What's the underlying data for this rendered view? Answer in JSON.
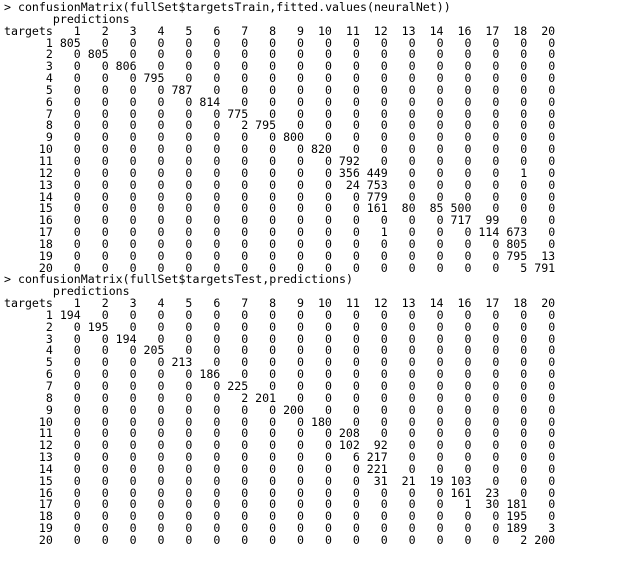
{
  "blocks": [
    {
      "command": "> confusionMatrix(fullSet$targetsTrain,fitted.values(neuralNet))",
      "col_header": "predictions",
      "row_header": "targets",
      "columns": [
        "1",
        "2",
        "3",
        "4",
        "5",
        "6",
        "7",
        "8",
        "9",
        "10",
        "11",
        "12",
        "13",
        "14",
        "16",
        "17",
        "18",
        "20"
      ],
      "rows": [
        {
          "target": "1",
          "values": [
            805,
            0,
            0,
            0,
            0,
            0,
            0,
            0,
            0,
            0,
            0,
            0,
            0,
            0,
            0,
            0,
            0,
            0
          ]
        },
        {
          "target": "2",
          "values": [
            0,
            805,
            0,
            0,
            0,
            0,
            0,
            0,
            0,
            0,
            0,
            0,
            0,
            0,
            0,
            0,
            0,
            0
          ]
        },
        {
          "target": "3",
          "values": [
            0,
            0,
            806,
            0,
            0,
            0,
            0,
            0,
            0,
            0,
            0,
            0,
            0,
            0,
            0,
            0,
            0,
            0
          ]
        },
        {
          "target": "4",
          "values": [
            0,
            0,
            0,
            795,
            0,
            0,
            0,
            0,
            0,
            0,
            0,
            0,
            0,
            0,
            0,
            0,
            0,
            0
          ]
        },
        {
          "target": "5",
          "values": [
            0,
            0,
            0,
            0,
            787,
            0,
            0,
            0,
            0,
            0,
            0,
            0,
            0,
            0,
            0,
            0,
            0,
            0
          ]
        },
        {
          "target": "6",
          "values": [
            0,
            0,
            0,
            0,
            0,
            814,
            0,
            0,
            0,
            0,
            0,
            0,
            0,
            0,
            0,
            0,
            0,
            0
          ]
        },
        {
          "target": "7",
          "values": [
            0,
            0,
            0,
            0,
            0,
            0,
            775,
            0,
            0,
            0,
            0,
            0,
            0,
            0,
            0,
            0,
            0,
            0
          ]
        },
        {
          "target": "8",
          "values": [
            0,
            0,
            0,
            0,
            0,
            0,
            2,
            795,
            0,
            0,
            0,
            0,
            0,
            0,
            0,
            0,
            0,
            0
          ]
        },
        {
          "target": "9",
          "values": [
            0,
            0,
            0,
            0,
            0,
            0,
            0,
            0,
            800,
            0,
            0,
            0,
            0,
            0,
            0,
            0,
            0,
            0
          ]
        },
        {
          "target": "10",
          "values": [
            0,
            0,
            0,
            0,
            0,
            0,
            0,
            0,
            0,
            820,
            0,
            0,
            0,
            0,
            0,
            0,
            0,
            0
          ]
        },
        {
          "target": "11",
          "values": [
            0,
            0,
            0,
            0,
            0,
            0,
            0,
            0,
            0,
            0,
            792,
            0,
            0,
            0,
            0,
            0,
            0,
            0
          ]
        },
        {
          "target": "12",
          "values": [
            0,
            0,
            0,
            0,
            0,
            0,
            0,
            0,
            0,
            0,
            356,
            449,
            0,
            0,
            0,
            0,
            1,
            0
          ]
        },
        {
          "target": "13",
          "values": [
            0,
            0,
            0,
            0,
            0,
            0,
            0,
            0,
            0,
            0,
            24,
            753,
            0,
            0,
            0,
            0,
            0,
            0
          ]
        },
        {
          "target": "14",
          "values": [
            0,
            0,
            0,
            0,
            0,
            0,
            0,
            0,
            0,
            0,
            0,
            779,
            0,
            0,
            0,
            0,
            0,
            0
          ]
        },
        {
          "target": "15",
          "values": [
            0,
            0,
            0,
            0,
            0,
            0,
            0,
            0,
            0,
            0,
            0,
            161,
            80,
            85,
            500,
            0,
            0,
            0
          ]
        },
        {
          "target": "16",
          "values": [
            0,
            0,
            0,
            0,
            0,
            0,
            0,
            0,
            0,
            0,
            0,
            0,
            0,
            0,
            717,
            99,
            0,
            0
          ]
        },
        {
          "target": "17",
          "values": [
            0,
            0,
            0,
            0,
            0,
            0,
            0,
            0,
            0,
            0,
            0,
            1,
            0,
            0,
            0,
            114,
            673,
            0
          ]
        },
        {
          "target": "18",
          "values": [
            0,
            0,
            0,
            0,
            0,
            0,
            0,
            0,
            0,
            0,
            0,
            0,
            0,
            0,
            0,
            0,
            805,
            0
          ]
        },
        {
          "target": "19",
          "values": [
            0,
            0,
            0,
            0,
            0,
            0,
            0,
            0,
            0,
            0,
            0,
            0,
            0,
            0,
            0,
            0,
            795,
            13
          ]
        },
        {
          "target": "20",
          "values": [
            0,
            0,
            0,
            0,
            0,
            0,
            0,
            0,
            0,
            0,
            0,
            0,
            0,
            0,
            0,
            0,
            5,
            791
          ]
        }
      ]
    },
    {
      "command": "> confusionMatrix(fullSet$targetsTest,predictions)",
      "col_header": "predictions",
      "row_header": "targets",
      "columns": [
        "1",
        "2",
        "3",
        "4",
        "5",
        "6",
        "7",
        "8",
        "9",
        "10",
        "11",
        "12",
        "13",
        "14",
        "16",
        "17",
        "18",
        "20"
      ],
      "rows": [
        {
          "target": "1",
          "values": [
            194,
            0,
            0,
            0,
            0,
            0,
            0,
            0,
            0,
            0,
            0,
            0,
            0,
            0,
            0,
            0,
            0,
            0
          ]
        },
        {
          "target": "2",
          "values": [
            0,
            195,
            0,
            0,
            0,
            0,
            0,
            0,
            0,
            0,
            0,
            0,
            0,
            0,
            0,
            0,
            0,
            0
          ]
        },
        {
          "target": "3",
          "values": [
            0,
            0,
            194,
            0,
            0,
            0,
            0,
            0,
            0,
            0,
            0,
            0,
            0,
            0,
            0,
            0,
            0,
            0
          ]
        },
        {
          "target": "4",
          "values": [
            0,
            0,
            0,
            205,
            0,
            0,
            0,
            0,
            0,
            0,
            0,
            0,
            0,
            0,
            0,
            0,
            0,
            0
          ]
        },
        {
          "target": "5",
          "values": [
            0,
            0,
            0,
            0,
            213,
            0,
            0,
            0,
            0,
            0,
            0,
            0,
            0,
            0,
            0,
            0,
            0,
            0
          ]
        },
        {
          "target": "6",
          "values": [
            0,
            0,
            0,
            0,
            0,
            186,
            0,
            0,
            0,
            0,
            0,
            0,
            0,
            0,
            0,
            0,
            0,
            0
          ]
        },
        {
          "target": "7",
          "values": [
            0,
            0,
            0,
            0,
            0,
            0,
            225,
            0,
            0,
            0,
            0,
            0,
            0,
            0,
            0,
            0,
            0,
            0
          ]
        },
        {
          "target": "8",
          "values": [
            0,
            0,
            0,
            0,
            0,
            0,
            2,
            201,
            0,
            0,
            0,
            0,
            0,
            0,
            0,
            0,
            0,
            0
          ]
        },
        {
          "target": "9",
          "values": [
            0,
            0,
            0,
            0,
            0,
            0,
            0,
            0,
            200,
            0,
            0,
            0,
            0,
            0,
            0,
            0,
            0,
            0
          ]
        },
        {
          "target": "10",
          "values": [
            0,
            0,
            0,
            0,
            0,
            0,
            0,
            0,
            0,
            180,
            0,
            0,
            0,
            0,
            0,
            0,
            0,
            0
          ]
        },
        {
          "target": "11",
          "values": [
            0,
            0,
            0,
            0,
            0,
            0,
            0,
            0,
            0,
            0,
            208,
            0,
            0,
            0,
            0,
            0,
            0,
            0
          ]
        },
        {
          "target": "12",
          "values": [
            0,
            0,
            0,
            0,
            0,
            0,
            0,
            0,
            0,
            0,
            102,
            92,
            0,
            0,
            0,
            0,
            0,
            0
          ]
        },
        {
          "target": "13",
          "values": [
            0,
            0,
            0,
            0,
            0,
            0,
            0,
            0,
            0,
            0,
            6,
            217,
            0,
            0,
            0,
            0,
            0,
            0
          ]
        },
        {
          "target": "14",
          "values": [
            0,
            0,
            0,
            0,
            0,
            0,
            0,
            0,
            0,
            0,
            0,
            221,
            0,
            0,
            0,
            0,
            0,
            0
          ]
        },
        {
          "target": "15",
          "values": [
            0,
            0,
            0,
            0,
            0,
            0,
            0,
            0,
            0,
            0,
            0,
            31,
            21,
            19,
            103,
            0,
            0,
            0
          ]
        },
        {
          "target": "16",
          "values": [
            0,
            0,
            0,
            0,
            0,
            0,
            0,
            0,
            0,
            0,
            0,
            0,
            0,
            0,
            161,
            23,
            0,
            0
          ]
        },
        {
          "target": "17",
          "values": [
            0,
            0,
            0,
            0,
            0,
            0,
            0,
            0,
            0,
            0,
            0,
            0,
            0,
            0,
            1,
            30,
            181,
            0
          ]
        },
        {
          "target": "18",
          "values": [
            0,
            0,
            0,
            0,
            0,
            0,
            0,
            0,
            0,
            0,
            0,
            0,
            0,
            0,
            0,
            0,
            195,
            0
          ]
        },
        {
          "target": "19",
          "values": [
            0,
            0,
            0,
            0,
            0,
            0,
            0,
            0,
            0,
            0,
            0,
            0,
            0,
            0,
            0,
            0,
            189,
            3
          ]
        },
        {
          "target": "20",
          "values": [
            0,
            0,
            0,
            0,
            0,
            0,
            0,
            0,
            0,
            0,
            0,
            0,
            0,
            0,
            0,
            0,
            2,
            200
          ]
        }
      ]
    }
  ]
}
